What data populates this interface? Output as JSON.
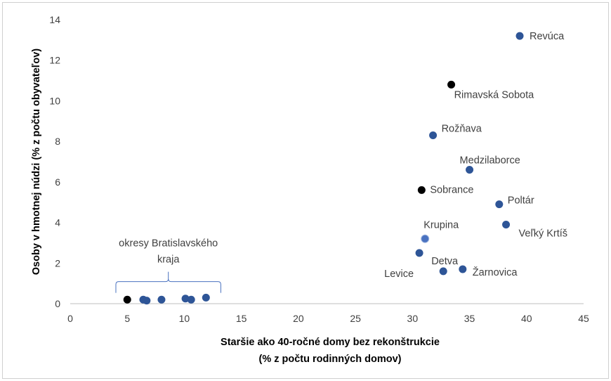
{
  "chart_data": {
    "type": "scatter",
    "title": "",
    "xlabel_lines": [
      "Staršie ako 40-ročné domy bez rekonštrukcie",
      "(% z počtu rodinných domov)"
    ],
    "ylabel": "Osoby v hmotnej núdzi (% z počtu obyvateľov)",
    "xlim": [
      0,
      45
    ],
    "ylim": [
      0,
      14
    ],
    "x_ticks": [
      "0",
      "5",
      "10",
      "15",
      "20",
      "25",
      "30",
      "35",
      "40",
      "45"
    ],
    "y_ticks": [
      "0",
      "2",
      "4",
      "6",
      "8",
      "10",
      "12",
      "14"
    ],
    "grid": false,
    "colors": {
      "default": "#2e5597",
      "highlight": "#000000",
      "light": "#4a72c0"
    },
    "points": [
      {
        "label": "Revúca",
        "x": 39.4,
        "y": 13.2,
        "color": "default"
      },
      {
        "label": "Rimavská Sobota",
        "x": 33.4,
        "y": 10.8,
        "color": "highlight"
      },
      {
        "label": "Rožňava",
        "x": 31.8,
        "y": 8.3,
        "color": "default"
      },
      {
        "label": "Medzilaborce",
        "x": 35.0,
        "y": 6.6,
        "color": "default"
      },
      {
        "label": "Sobrance",
        "x": 30.8,
        "y": 5.6,
        "color": "highlight"
      },
      {
        "label": "Poltár",
        "x": 37.6,
        "y": 4.9,
        "color": "default"
      },
      {
        "label": "Veľký Krtíš",
        "x": 38.2,
        "y": 3.9,
        "color": "default"
      },
      {
        "label": "Krupina",
        "x": 31.1,
        "y": 3.2,
        "color": "light"
      },
      {
        "label": "Levice",
        "x": 30.6,
        "y": 2.5,
        "color": "default"
      },
      {
        "label": "Detva",
        "x": 32.7,
        "y": 1.6,
        "color": "default"
      },
      {
        "label": "Žarnovica",
        "x": 34.4,
        "y": 1.7,
        "color": "default"
      },
      {
        "label": "",
        "x": 5.0,
        "y": 0.2,
        "color": "highlight"
      },
      {
        "label": "",
        "x": 6.4,
        "y": 0.2,
        "color": "default"
      },
      {
        "label": "",
        "x": 6.7,
        "y": 0.15,
        "color": "default"
      },
      {
        "label": "",
        "x": 8.0,
        "y": 0.2,
        "color": "default"
      },
      {
        "label": "",
        "x": 10.1,
        "y": 0.25,
        "color": "default"
      },
      {
        "label": "",
        "x": 10.6,
        "y": 0.2,
        "color": "default"
      },
      {
        "label": "",
        "x": 11.9,
        "y": 0.3,
        "color": "default"
      }
    ],
    "annotation": {
      "lines": [
        "okresy Bratislavského",
        "kraja"
      ],
      "bracket_x_range": [
        4.0,
        13.2
      ],
      "bracket_y": 0.6
    }
  }
}
